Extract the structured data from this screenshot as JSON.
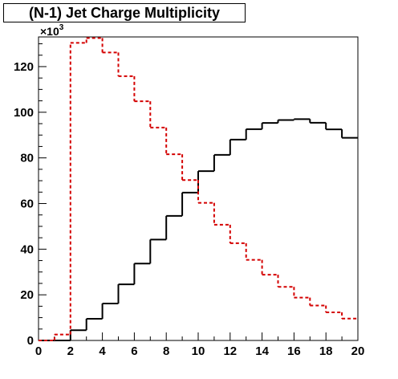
{
  "chart_data": {
    "type": "line",
    "title": "(N-1) Jet Charge Multiplicity",
    "xlabel": "",
    "ylabel": "",
    "y_multiplier": "×10",
    "y_multiplier_exponent": "3",
    "xlim": [
      0,
      20
    ],
    "ylim": [
      0,
      133
    ],
    "x_ticks": [
      "0",
      "2",
      "4",
      "6",
      "8",
      "10",
      "12",
      "14",
      "16",
      "18",
      "20"
    ],
    "y_ticks": [
      "0",
      "20",
      "40",
      "60",
      "80",
      "100",
      "120"
    ],
    "grid": false,
    "bin_edges": [
      0,
      1,
      2,
      3,
      4,
      5,
      6,
      7,
      8,
      9,
      10,
      11,
      12,
      13,
      14,
      15,
      16,
      17,
      18,
      19,
      20
    ],
    "series": [
      {
        "style": "solid",
        "color": "#000000",
        "values": [
          0,
          0,
          4.5,
          9.5,
          16.2,
          24.6,
          33.7,
          44.2,
          54.6,
          64.8,
          74.2,
          81.3,
          88.0,
          92.6,
          95.3,
          96.6,
          97.0,
          95.4,
          92.5,
          88.8
        ]
      },
      {
        "style": "dashed",
        "color": "#d40000",
        "values": [
          0,
          2.6,
          130.4,
          132.5,
          126.2,
          115.8,
          104.8,
          93.3,
          81.6,
          70.3,
          60.3,
          50.7,
          42.6,
          35.3,
          28.8,
          23.5,
          18.8,
          15.3,
          12.3,
          9.6
        ]
      }
    ]
  }
}
